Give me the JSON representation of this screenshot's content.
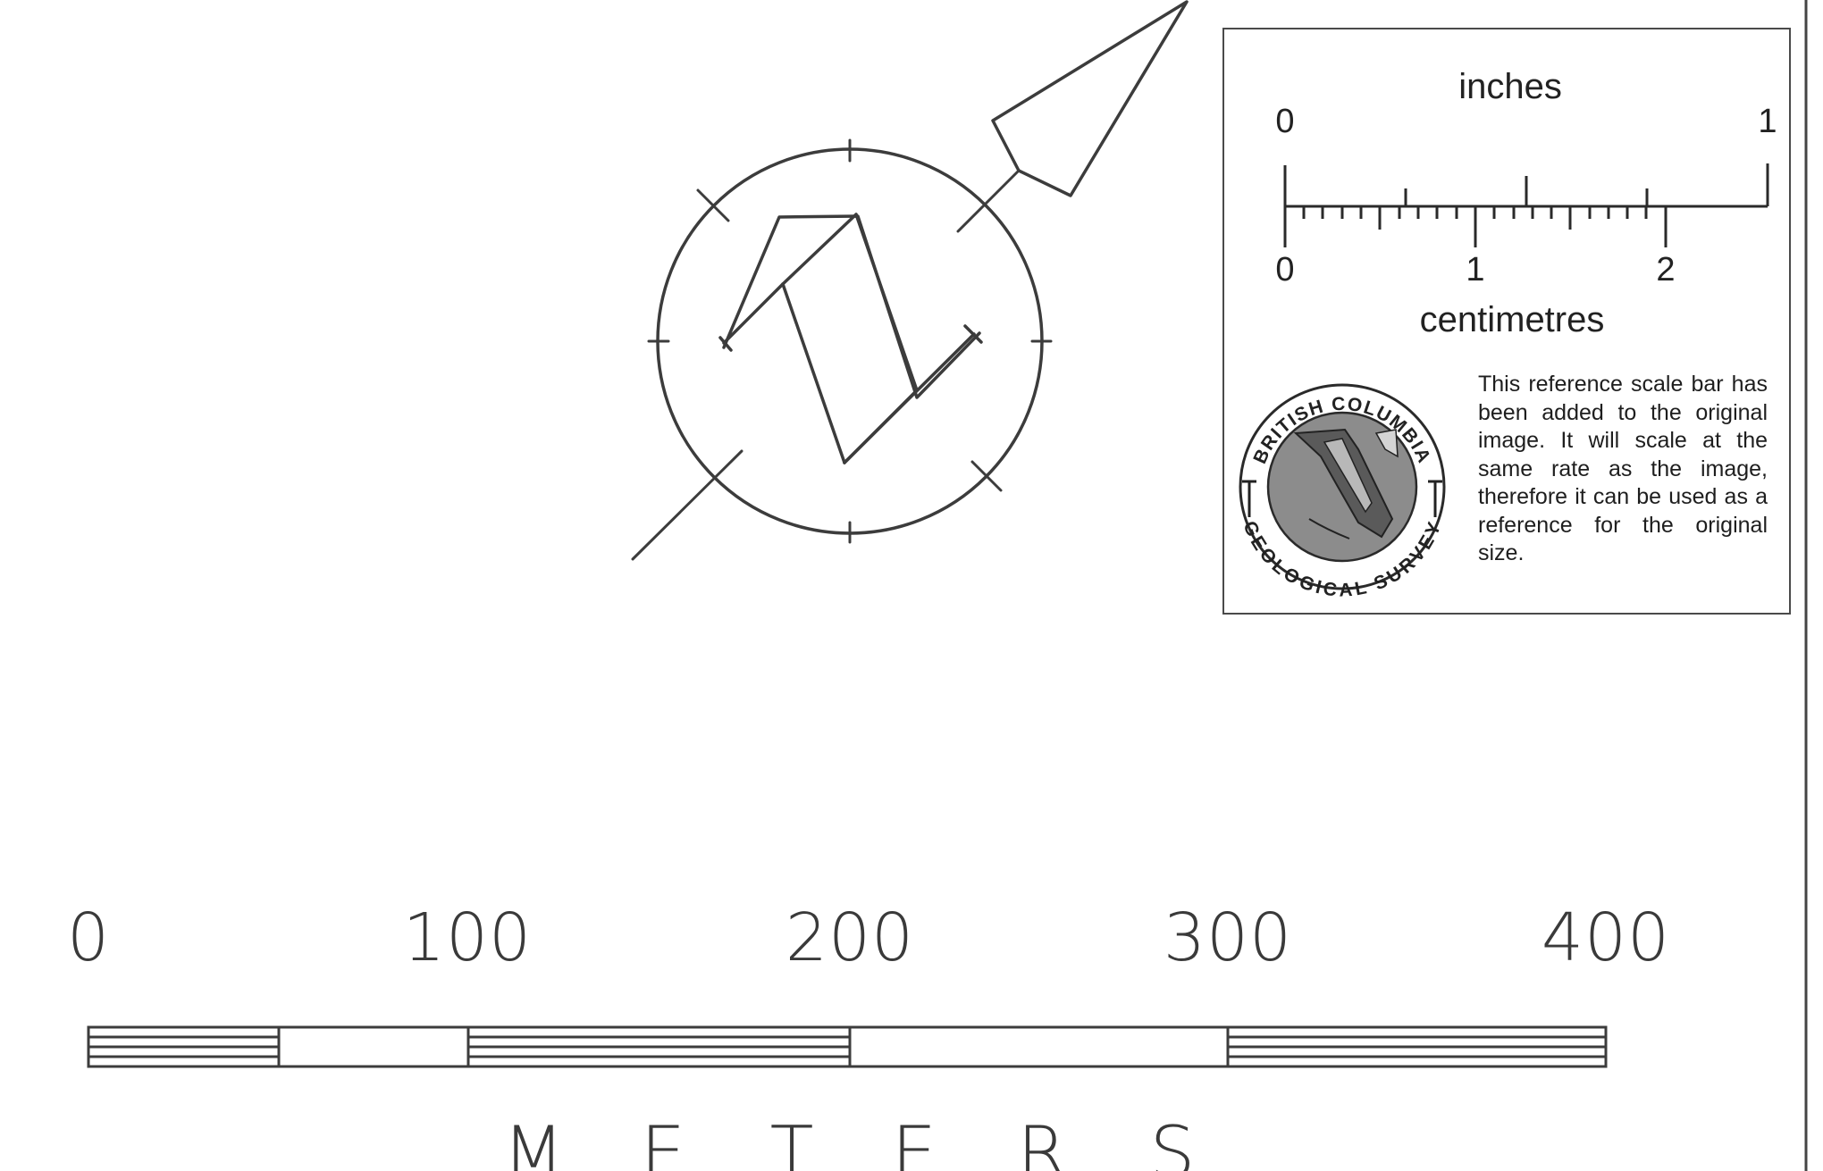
{
  "scale_bar": {
    "labels": [
      "0",
      "100",
      "200",
      "300",
      "400"
    ],
    "unit_letters": [
      "M",
      "E",
      "T",
      "E",
      "R",
      "S"
    ]
  },
  "north_arrow": {
    "letter": "N"
  },
  "reference_box": {
    "inches_label": "inches",
    "inch_ticks": [
      "0",
      "1"
    ],
    "centimetres_label": "centimetres",
    "cm_ticks": [
      "0",
      "1",
      "2"
    ],
    "logo_text_top": "BRITISH COLUMBIA",
    "logo_text_bottom": "GEOLOGICAL SURVEY",
    "note": "This reference scale bar has been added to the original image. It will scale at the same rate as the image, therefore it can be used as a reference for the original size."
  },
  "colors": {
    "ink": "#3c3c3c",
    "box_border": "#4a4a4a",
    "logo_grey": "#8c8c8c"
  }
}
